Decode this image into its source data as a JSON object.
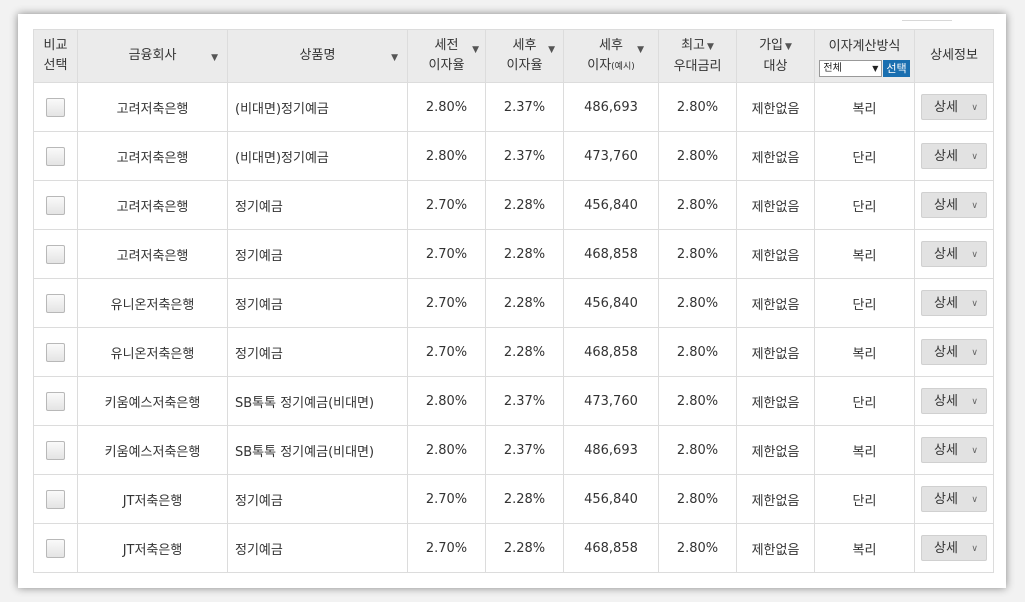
{
  "header": {
    "compare": [
      "비교",
      "선택"
    ],
    "company": "금융회사",
    "product": "상품명",
    "pre_tax": [
      "세전",
      "이자율"
    ],
    "post_tax": [
      "세후",
      "이자율"
    ],
    "post_interest": [
      "세후",
      "이자",
      "(예시)"
    ],
    "max_rate": [
      "최고",
      "우대금리"
    ],
    "target": [
      "가입",
      "대상"
    ],
    "method": {
      "title": "이자계산방식",
      "select_value": "전체",
      "select_button": "선택"
    },
    "details": "상세정보"
  },
  "icons": {
    "sort": "▼",
    "chevron": "∨"
  },
  "detail_label": "상세",
  "rows": [
    {
      "company": "고려저축은행",
      "product": "(비대면)정기예금",
      "pre": "2.80%",
      "post": "2.37%",
      "interest": "486,693",
      "max": "2.80%",
      "target": "제한없음",
      "method": "복리"
    },
    {
      "company": "고려저축은행",
      "product": "(비대면)정기예금",
      "pre": "2.80%",
      "post": "2.37%",
      "interest": "473,760",
      "max": "2.80%",
      "target": "제한없음",
      "method": "단리"
    },
    {
      "company": "고려저축은행",
      "product": "정기예금",
      "pre": "2.70%",
      "post": "2.28%",
      "interest": "456,840",
      "max": "2.80%",
      "target": "제한없음",
      "method": "단리"
    },
    {
      "company": "고려저축은행",
      "product": "정기예금",
      "pre": "2.70%",
      "post": "2.28%",
      "interest": "468,858",
      "max": "2.80%",
      "target": "제한없음",
      "method": "복리"
    },
    {
      "company": "유니온저축은행",
      "product": "정기예금",
      "pre": "2.70%",
      "post": "2.28%",
      "interest": "456,840",
      "max": "2.80%",
      "target": "제한없음",
      "method": "단리"
    },
    {
      "company": "유니온저축은행",
      "product": "정기예금",
      "pre": "2.70%",
      "post": "2.28%",
      "interest": "468,858",
      "max": "2.80%",
      "target": "제한없음",
      "method": "복리"
    },
    {
      "company": "키움예스저축은행",
      "product": "SB톡톡 정기예금(비대면)",
      "pre": "2.80%",
      "post": "2.37%",
      "interest": "473,760",
      "max": "2.80%",
      "target": "제한없음",
      "method": "단리"
    },
    {
      "company": "키움예스저축은행",
      "product": "SB톡톡 정기예금(비대면)",
      "pre": "2.80%",
      "post": "2.37%",
      "interest": "486,693",
      "max": "2.80%",
      "target": "제한없음",
      "method": "복리"
    },
    {
      "company": "JT저축은행",
      "product": "정기예금",
      "pre": "2.70%",
      "post": "2.28%",
      "interest": "456,840",
      "max": "2.80%",
      "target": "제한없음",
      "method": "단리"
    },
    {
      "company": "JT저축은행",
      "product": "정기예금",
      "pre": "2.70%",
      "post": "2.28%",
      "interest": "468,858",
      "max": "2.80%",
      "target": "제한없음",
      "method": "복리"
    }
  ]
}
